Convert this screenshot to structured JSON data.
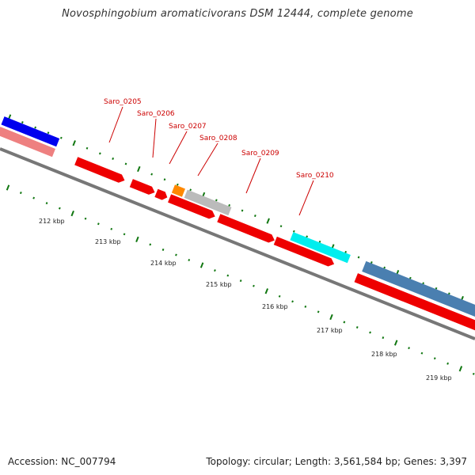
{
  "header": {
    "title": "Novosphingobium aromaticivorans DSM 12444, complete genome"
  },
  "footer": {
    "accession": "Accession: NC_007794",
    "topology": "Topology: circular; Length: 3,561,584 bp; Genes: 3,397"
  },
  "genes": {
    "saro_0205": "Saro_0205",
    "saro_0206": "Saro_0206",
    "saro_0207": "Saro_0207",
    "saro_0208": "Saro_0208",
    "saro_0209": "Saro_0209",
    "saro_0210": "Saro_0210"
  },
  "ruler": {
    "t212": "212 kbp",
    "t213": "213 kbp",
    "t214": "214 kbp",
    "t215": "215 kbp",
    "t216": "216 kbp",
    "t217": "217 kbp",
    "t218": "218 kbp",
    "t219": "219 kbp"
  },
  "colors": {
    "forward_gene": "#ee0000",
    "blue_gene": "#0000ee",
    "pink_gene": "#ee8080",
    "orange_gene": "#ff8800",
    "gray_gene": "#bbbbbb",
    "cyan_gene": "#00eeee",
    "steel_gene": "#4a7fb0",
    "backbone": "#777777",
    "tick_green": "#117711"
  }
}
